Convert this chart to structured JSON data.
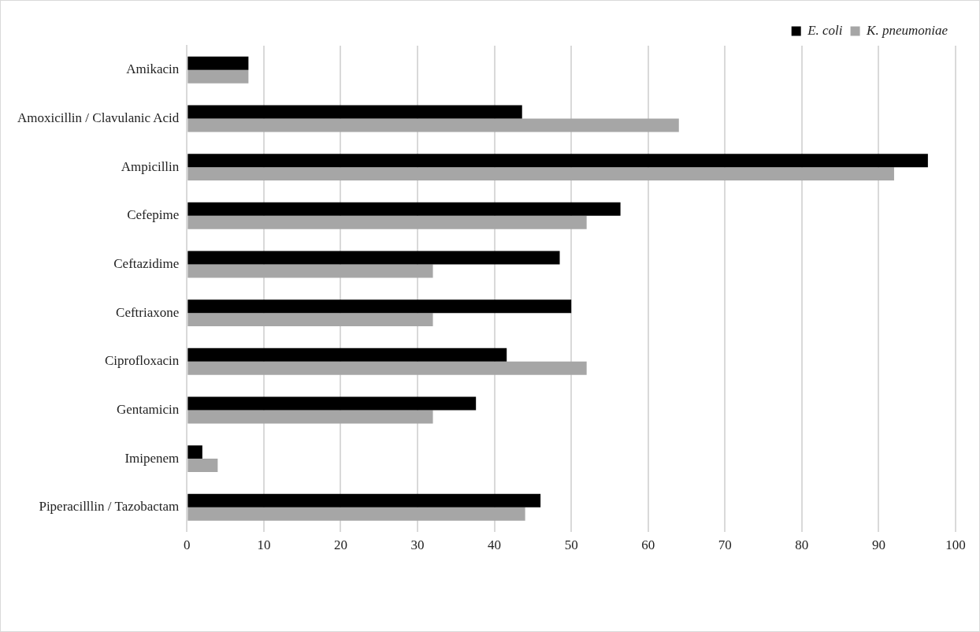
{
  "chart_data": {
    "type": "bar",
    "orientation": "horizontal",
    "categories": [
      "Amikacin",
      "Amoxicillin / Clavulanic Acid",
      "Ampicillin",
      "Cefepime",
      "Ceftazidime",
      "Ceftriaxone",
      "Ciprofloxacin",
      "Gentamicin",
      "Imipenem",
      "Piperacilllin / Tazobactam"
    ],
    "series": [
      {
        "name": "E. coli",
        "color": "#000000",
        "values": [
          8,
          43.6,
          96.4,
          56.4,
          48.5,
          50.0,
          41.6,
          37.6,
          2.0,
          46.0
        ]
      },
      {
        "name": "K. pneumoniae",
        "color": "#a6a6a6",
        "values": [
          8,
          64.0,
          92.0,
          52.0,
          32.0,
          32.0,
          52.0,
          32.0,
          4.0,
          44.0
        ]
      }
    ],
    "xlim": [
      0,
      100
    ],
    "xticks": [
      0,
      10,
      20,
      30,
      40,
      50,
      60,
      70,
      80,
      90,
      100
    ],
    "grid": "x",
    "legend": "top right"
  }
}
